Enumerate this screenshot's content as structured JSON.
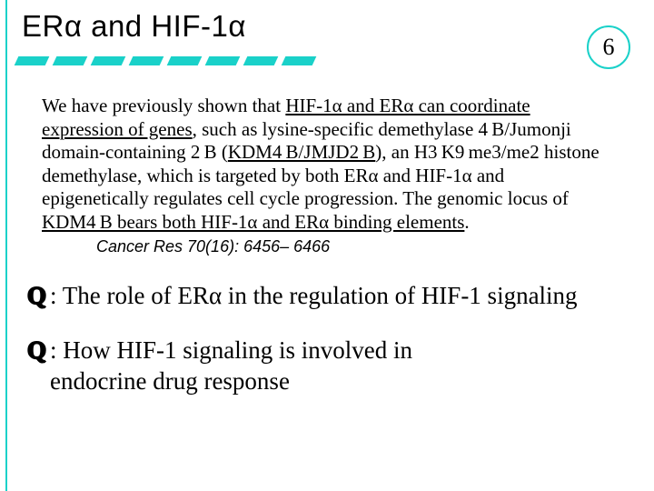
{
  "colors": {
    "accent": "#1ad1c9",
    "background": "#ffffff",
    "text": "#000000"
  },
  "header": {
    "title": "ERα and HIF-1α",
    "slide_number": "6",
    "dash_count": 8
  },
  "paragraph": {
    "seg1": "We have previously shown that ",
    "u1": "HIF-1α and ERα can coordinate expression of genes",
    "seg2": ", such as lysine-specific demethylase 4 B/Jumonji domain-containing 2 B (",
    "u2": "KDM4 B/JMJD2 B",
    "seg3": "), an H3 K9 me3/me2 histone demethylase, which is targeted by both ERα and HIF-1α and epigenetically regulates cell cycle progression. The genomic locus of ",
    "u3": "KDM4 B bears both HIF-1α and ERα binding elements",
    "seg4": ".",
    "citation": "Cancer Res 70(16): 6456– 6466"
  },
  "questions": {
    "letter": "Q",
    "q1": " : The role of ERα in the regulation of HIF-1 signaling",
    "q2": " : How HIF-1 signaling is involved in endocrine drug response"
  }
}
